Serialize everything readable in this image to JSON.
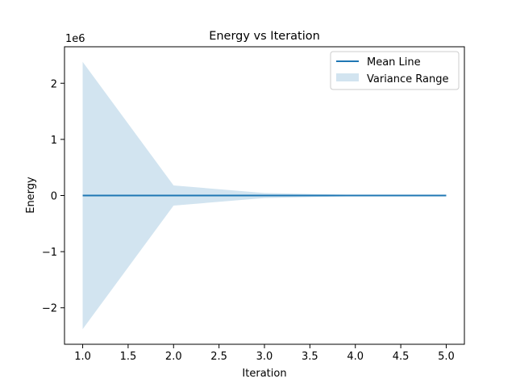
{
  "colors": {
    "mean_line": "#1f77b4",
    "variance_fill": "#1f77b4"
  },
  "chart_data": {
    "type": "line",
    "title": "Energy vs Iteration",
    "xlabel": "Iteration",
    "ylabel": "Energy",
    "y_offset_label": "1e6",
    "xlim": [
      0.8,
      5.2
    ],
    "ylim": [
      -2.65,
      2.65
    ],
    "x_ticks": [
      1.0,
      1.5,
      2.0,
      2.5,
      3.0,
      3.5,
      4.0,
      4.5,
      5.0
    ],
    "x_tick_labels": [
      "1.0",
      "1.5",
      "2.0",
      "2.5",
      "3.0",
      "3.5",
      "4.0",
      "4.5",
      "5.0"
    ],
    "y_ticks": [
      -2,
      -1,
      0,
      1,
      2
    ],
    "y_tick_labels": [
      "−2",
      "−1",
      "0",
      "1",
      "2"
    ],
    "grid": false,
    "legend_position": "top-right",
    "legend": [
      "Mean Line",
      "Variance Range"
    ],
    "x": [
      1,
      2,
      3,
      4,
      5
    ],
    "series": [
      {
        "name": "Mean Line",
        "values": [
          0,
          0,
          0,
          0,
          0
        ]
      },
      {
        "name": "Variance Range",
        "type": "area",
        "lower": [
          -2.38,
          -0.18,
          -0.045,
          -0.01,
          -0.005
        ],
        "upper": [
          2.38,
          0.18,
          0.045,
          0.01,
          0.005
        ]
      }
    ]
  }
}
